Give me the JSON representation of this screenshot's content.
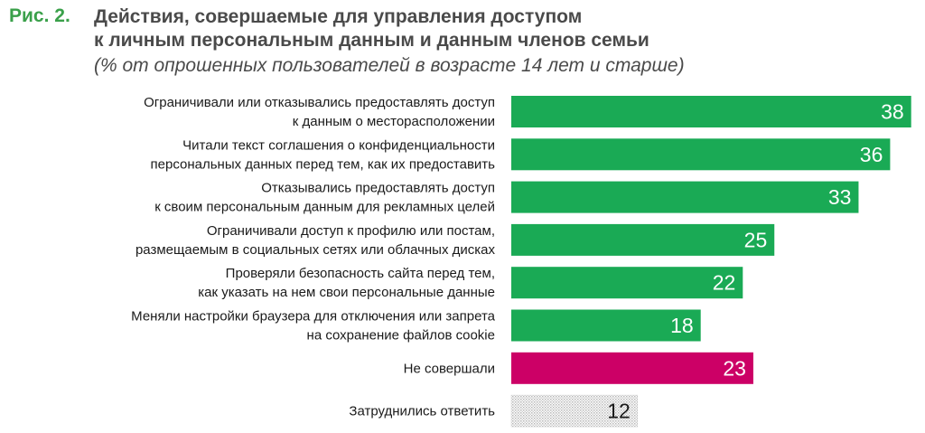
{
  "figure": {
    "label": "Рис. 2.",
    "title_line1": "Действия, совершаемые для управления доступом",
    "title_line2": "к личным персональным данным и данным членов семьи",
    "subtitle": "(% от опрошенных пользователей в возрасте 14 лет и старше)"
  },
  "colors": {
    "green": "#1aaa55",
    "magenta": "#cc0066",
    "gray_pattern": "#b8b8b8"
  },
  "chart_data": {
    "type": "bar",
    "orientation": "horizontal",
    "title": "Действия, совершаемые для управления доступом к личным персональным данным и данным членов семьи",
    "subtitle": "(% от опрошенных пользователей в возрасте 14 лет и старше)",
    "categories": [
      [
        "Ограничивали или отказывались предоставлять доступ",
        "к данным о месторасположении"
      ],
      [
        "Читали текст соглашения о конфиденциальности",
        "персональных данных перед тем, как их предоставить"
      ],
      [
        "Отказывались предоставлять доступ",
        "к своим персональным данным для рекламных целей"
      ],
      [
        "Ограничивали доступ к профилю или постам,",
        "размещаемым в социальных сетях или облачных дисках"
      ],
      [
        "Проверяли безопасность сайта перед тем,",
        "как указать на нем свои персональные данные"
      ],
      [
        "Меняли настройки браузера для отключения или запрета",
        "на сохранение файлов cookie"
      ],
      [
        "Не совершали"
      ],
      [
        "Затруднились ответить"
      ]
    ],
    "values": [
      38,
      36,
      33,
      25,
      22,
      18,
      23,
      12
    ],
    "bar_styles": [
      "green",
      "green",
      "green",
      "green",
      "green",
      "green",
      "magenta",
      "pattern"
    ],
    "value_label_colors": [
      "#ffffff",
      "#ffffff",
      "#ffffff",
      "#ffffff",
      "#ffffff",
      "#ffffff",
      "#ffffff",
      "#1a1a1a"
    ],
    "xlim": [
      0,
      40
    ],
    "grid": false,
    "legend": "none"
  }
}
